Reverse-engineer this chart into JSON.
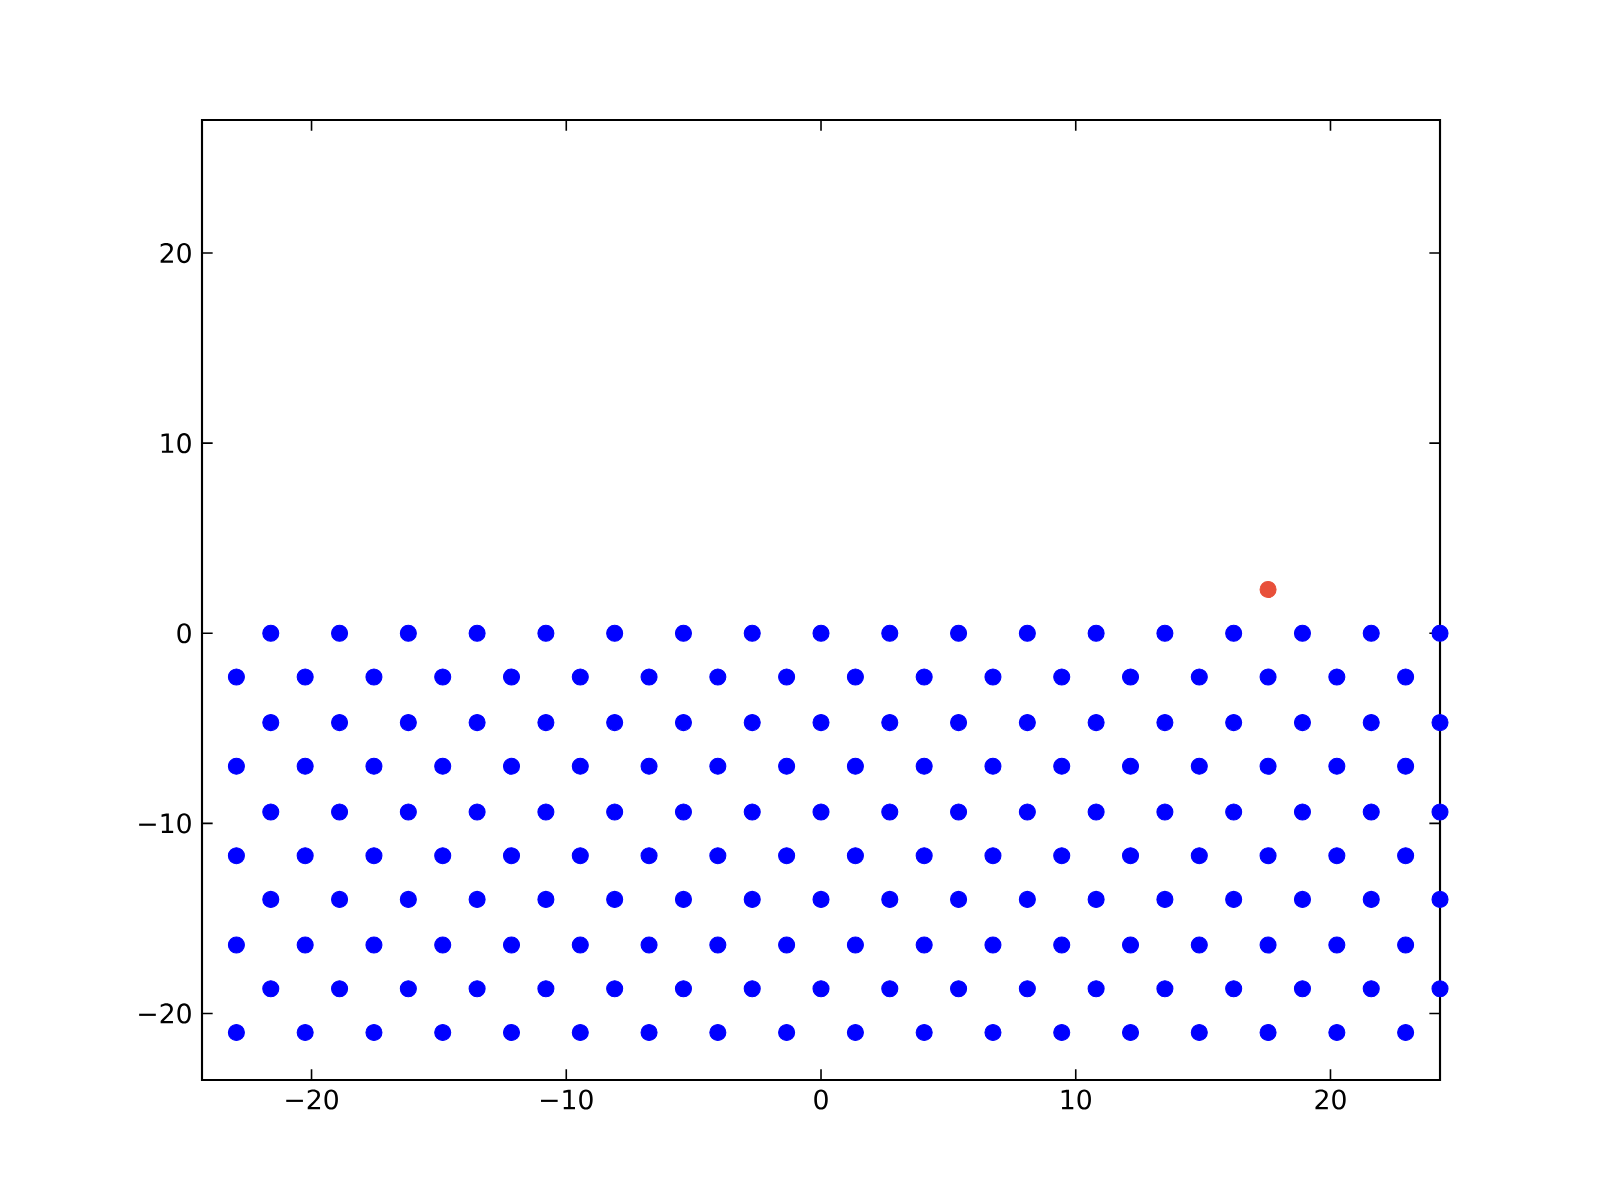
{
  "chart_data": {
    "type": "scatter",
    "marker": "circle",
    "grid": false,
    "xlim": [
      -24.3,
      24.3
    ],
    "ylim": [
      -23.5,
      27
    ],
    "xticks": [
      {
        "value": -20,
        "label": "−20"
      },
      {
        "value": -10,
        "label": "−10"
      },
      0,
      10,
      20
    ],
    "yticks": [
      {
        "value": -20,
        "label": "−20"
      },
      {
        "value": -10,
        "label": "−10"
      },
      0,
      10,
      20
    ],
    "series": [
      {
        "color": "#0000ff",
        "x": [
          -21.6,
          -18.9,
          -16.2,
          -13.5,
          -10.8,
          -8.1,
          -5.4,
          -2.7,
          0,
          2.7,
          5.4,
          8.1,
          10.8,
          13.5,
          16.2,
          18.9,
          21.6,
          24.3
        ],
        "values": [
          0,
          0,
          0,
          0,
          0,
          0,
          0,
          0,
          0,
          0,
          0,
          0,
          0,
          0,
          0,
          0,
          0,
          0
        ]
      },
      {
        "color": "#0000ff",
        "x": [
          -22.95,
          -20.25,
          -17.55,
          -14.85,
          -12.15,
          -9.45,
          -6.75,
          -4.05,
          -1.35,
          1.35,
          4.05,
          6.75,
          9.45,
          12.15,
          14.85,
          17.55,
          20.25,
          22.95
        ],
        "values": [
          -2.3,
          -2.3,
          -2.3,
          -2.3,
          -2.3,
          -2.3,
          -2.3,
          -2.3,
          -2.3,
          -2.3,
          -2.3,
          -2.3,
          -2.3,
          -2.3,
          -2.3,
          -2.3,
          -2.3,
          -2.3
        ]
      },
      {
        "color": "#0000ff",
        "x": [
          -21.6,
          -18.9,
          -16.2,
          -13.5,
          -10.8,
          -8.1,
          -5.4,
          -2.7,
          0,
          2.7,
          5.4,
          8.1,
          10.8,
          13.5,
          16.2,
          18.9,
          21.6,
          24.3
        ],
        "values": [
          -4.7,
          -4.7,
          -4.7,
          -4.7,
          -4.7,
          -4.7,
          -4.7,
          -4.7,
          -4.7,
          -4.7,
          -4.7,
          -4.7,
          -4.7,
          -4.7,
          -4.7,
          -4.7,
          -4.7,
          -4.7
        ]
      },
      {
        "color": "#0000ff",
        "x": [
          -22.95,
          -20.25,
          -17.55,
          -14.85,
          -12.15,
          -9.45,
          -6.75,
          -4.05,
          -1.35,
          1.35,
          4.05,
          6.75,
          9.45,
          12.15,
          14.85,
          17.55,
          20.25,
          22.95
        ],
        "values": [
          -7,
          -7,
          -7,
          -7,
          -7,
          -7,
          -7,
          -7,
          -7,
          -7,
          -7,
          -7,
          -7,
          -7,
          -7,
          -7,
          -7,
          -7
        ]
      },
      {
        "color": "#0000ff",
        "x": [
          -21.6,
          -18.9,
          -16.2,
          -13.5,
          -10.8,
          -8.1,
          -5.4,
          -2.7,
          0,
          2.7,
          5.4,
          8.1,
          10.8,
          13.5,
          16.2,
          18.9,
          21.6,
          24.3
        ],
        "values": [
          -9.4,
          -9.4,
          -9.4,
          -9.4,
          -9.4,
          -9.4,
          -9.4,
          -9.4,
          -9.4,
          -9.4,
          -9.4,
          -9.4,
          -9.4,
          -9.4,
          -9.4,
          -9.4,
          -9.4,
          -9.4
        ]
      },
      {
        "color": "#0000ff",
        "x": [
          -22.95,
          -20.25,
          -17.55,
          -14.85,
          -12.15,
          -9.45,
          -6.75,
          -4.05,
          -1.35,
          1.35,
          4.05,
          6.75,
          9.45,
          12.15,
          14.85,
          17.55,
          20.25,
          22.95
        ],
        "values": [
          -11.7,
          -11.7,
          -11.7,
          -11.7,
          -11.7,
          -11.7,
          -11.7,
          -11.7,
          -11.7,
          -11.7,
          -11.7,
          -11.7,
          -11.7,
          -11.7,
          -11.7,
          -11.7,
          -11.7,
          -11.7
        ]
      },
      {
        "color": "#0000ff",
        "x": [
          -21.6,
          -18.9,
          -16.2,
          -13.5,
          -10.8,
          -8.1,
          -5.4,
          -2.7,
          0,
          2.7,
          5.4,
          8.1,
          10.8,
          13.5,
          16.2,
          18.9,
          21.6,
          24.3
        ],
        "values": [
          -14,
          -14,
          -14,
          -14,
          -14,
          -14,
          -14,
          -14,
          -14,
          -14,
          -14,
          -14,
          -14,
          -14,
          -14,
          -14,
          -14,
          -14
        ]
      },
      {
        "color": "#0000ff",
        "x": [
          -22.95,
          -20.25,
          -17.55,
          -14.85,
          -12.15,
          -9.45,
          -6.75,
          -4.05,
          -1.35,
          1.35,
          4.05,
          6.75,
          9.45,
          12.15,
          14.85,
          17.55,
          20.25,
          22.95
        ],
        "values": [
          -16.4,
          -16.4,
          -16.4,
          -16.4,
          -16.4,
          -16.4,
          -16.4,
          -16.4,
          -16.4,
          -16.4,
          -16.4,
          -16.4,
          -16.4,
          -16.4,
          -16.4,
          -16.4,
          -16.4,
          -16.4
        ]
      },
      {
        "color": "#0000ff",
        "x": [
          -21.6,
          -18.9,
          -16.2,
          -13.5,
          -10.8,
          -8.1,
          -5.4,
          -2.7,
          0,
          2.7,
          5.4,
          8.1,
          10.8,
          13.5,
          16.2,
          18.9,
          21.6,
          24.3
        ],
        "values": [
          -18.7,
          -18.7,
          -18.7,
          -18.7,
          -18.7,
          -18.7,
          -18.7,
          -18.7,
          -18.7,
          -18.7,
          -18.7,
          -18.7,
          -18.7,
          -18.7,
          -18.7,
          -18.7,
          -18.7,
          -18.7
        ]
      },
      {
        "color": "#0000ff",
        "x": [
          -22.95,
          -20.25,
          -17.55,
          -14.85,
          -12.15,
          -9.45,
          -6.75,
          -4.05,
          -1.35,
          1.35,
          4.05,
          6.75,
          9.45,
          12.15,
          14.85,
          17.55,
          20.25,
          22.95
        ],
        "values": [
          -21,
          -21,
          -21,
          -21,
          -21,
          -21,
          -21,
          -21,
          -21,
          -21,
          -21,
          -21,
          -21,
          -21,
          -21,
          -21,
          -21,
          -21
        ]
      },
      {
        "color": "#e8503a",
        "x": [
          17.55
        ],
        "values": [
          2.3
        ]
      }
    ]
  }
}
